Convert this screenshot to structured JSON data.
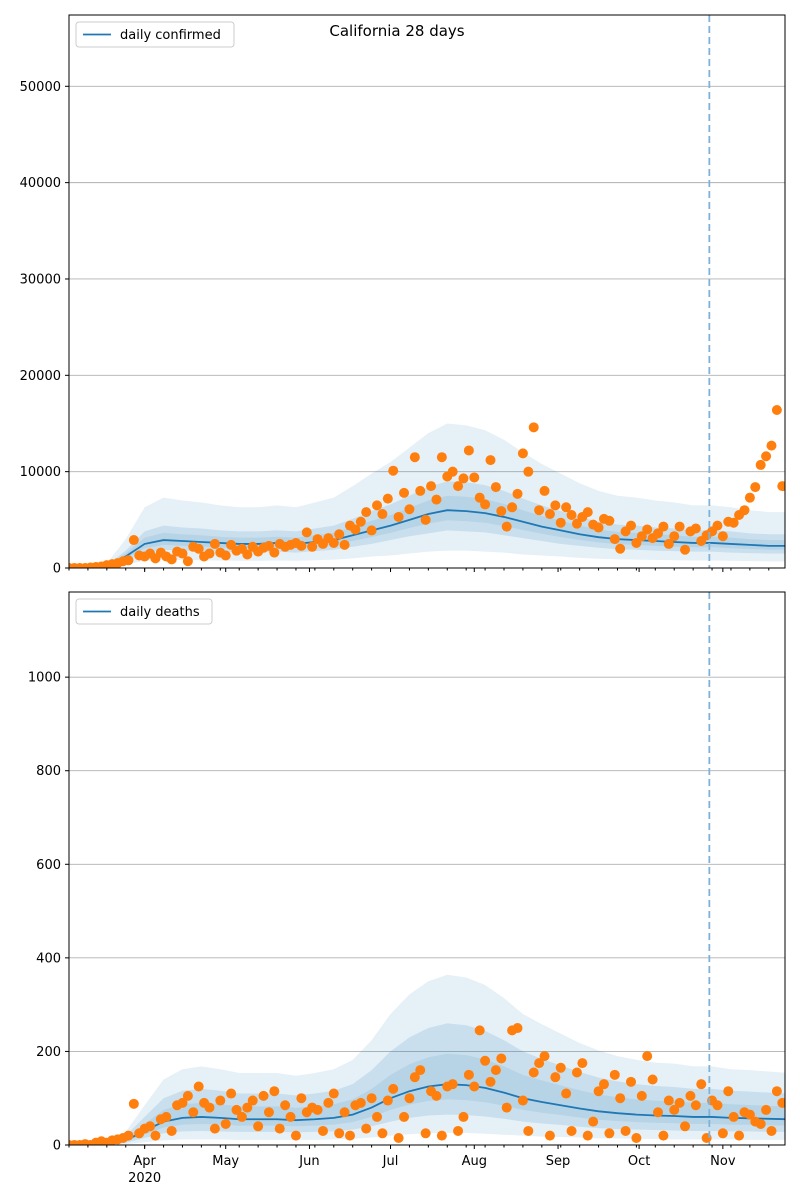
{
  "title": "California 28 days",
  "chart_data": [
    {
      "type": "line",
      "name": "confirmed",
      "legend": "daily confirmed",
      "legend_placement": "top-left",
      "start_date": "2020-03-04",
      "ylim": [
        0,
        57400
      ],
      "yticks": [
        0,
        10000,
        20000,
        30000,
        40000,
        50000
      ],
      "grid": "horizontal",
      "forecast_start_day": 237,
      "model_step_days": 7,
      "median": [
        0,
        0,
        200,
        1200,
        2500,
        2900,
        2800,
        2700,
        2600,
        2500,
        2500,
        2600,
        2500,
        2700,
        2900,
        3400,
        3900,
        4400,
        5000,
        5600,
        6000,
        5900,
        5700,
        5300,
        4800,
        4300,
        3900,
        3500,
        3200,
        3000,
        2900,
        2800,
        2700,
        2600,
        2600,
        2500,
        2400,
        2300,
        2300
      ],
      "outer_upper": [
        0,
        0,
        500,
        3000,
        6300,
        7300,
        7000,
        6800,
        6500,
        6300,
        6300,
        6500,
        6300,
        6800,
        7300,
        8500,
        9800,
        11000,
        12500,
        14000,
        15000,
        14800,
        14300,
        13300,
        12000,
        10800,
        9800,
        8800,
        8000,
        7500,
        7300,
        7000,
        6800,
        6500,
        6500,
        6300,
        6000,
        5800,
        5800
      ],
      "inner_upper": [
        0,
        0,
        300,
        1800,
        3800,
        4400,
        4200,
        4100,
        3900,
        3800,
        3800,
        3900,
        3800,
        4100,
        4400,
        5100,
        5900,
        6600,
        7500,
        8400,
        9000,
        8900,
        8600,
        8000,
        7200,
        6500,
        5900,
        5300,
        4800,
        4500,
        4400,
        4200,
        4100,
        3900,
        3900,
        3800,
        3600,
        3500,
        3500
      ],
      "inner_lower": [
        0,
        0,
        130,
        780,
        1600,
        1900,
        1800,
        1750,
        1700,
        1600,
        1600,
        1700,
        1600,
        1750,
        1900,
        2200,
        2500,
        2900,
        3300,
        3600,
        3900,
        3800,
        3700,
        3400,
        3100,
        2800,
        2500,
        2300,
        2100,
        1950,
        1900,
        1800,
        1750,
        1700,
        1700,
        1600,
        1550,
        1500,
        1500
      ],
      "outer_lower": [
        0,
        0,
        60,
        360,
        750,
        870,
        840,
        810,
        780,
        750,
        750,
        780,
        750,
        810,
        870,
        1000,
        1200,
        1300,
        1500,
        1700,
        1800,
        1800,
        1700,
        1600,
        1400,
        1300,
        1200,
        1050,
        960,
        900,
        870,
        840,
        810,
        780,
        780,
        750,
        720,
        690,
        690
      ],
      "observed_step_days": 2,
      "observed": [
        0,
        0,
        0,
        0,
        50,
        100,
        150,
        300,
        400,
        500,
        700,
        800,
        2900,
        1300,
        1200,
        1500,
        1000,
        1600,
        1200,
        900,
        1700,
        1500,
        700,
        2200,
        2000,
        1200,
        1500,
        2500,
        1600,
        1300,
        2400,
        1800,
        2000,
        1400,
        2200,
        1700,
        2100,
        2300,
        1600,
        2500,
        2200,
        2400,
        2600,
        2300,
        3700,
        2200,
        3000,
        2500,
        3100,
        2600,
        3500,
        2400,
        4400,
        4000,
        4800,
        5800,
        3900,
        6500,
        5600,
        7200,
        10100,
        5300,
        7800,
        6100,
        11500,
        8000,
        5000,
        8500,
        7100,
        11500,
        9500,
        10000,
        8500,
        9300,
        12200,
        9400,
        7300,
        6600,
        11200,
        8400,
        5900,
        4300,
        6300,
        7700,
        11900,
        10000,
        14600,
        6000,
        8000,
        5600,
        6500,
        4700,
        6300,
        5500,
        4600,
        5300,
        5800,
        4500,
        4200,
        5100,
        4900,
        3000,
        2000,
        3800,
        4400,
        2600,
        3300,
        4000,
        3100,
        3600,
        4300,
        2500,
        3300,
        4300,
        1900,
        3800,
        4100,
        2800,
        3400,
        3800,
        4400,
        3300,
        4800,
        4700,
        5500,
        6000,
        7300,
        8400,
        10700,
        11600,
        12700,
        16400,
        8500
      ]
    },
    {
      "type": "line",
      "name": "deaths",
      "legend": "daily deaths",
      "legend_placement": "top-left",
      "start_date": "2020-03-04",
      "ylim": [
        0,
        1182
      ],
      "yticks": [
        0,
        200,
        400,
        600,
        800,
        1000
      ],
      "grid": "horizontal",
      "forecast_start_day": 237,
      "model_step_days": 7,
      "median": [
        0,
        0,
        2,
        10,
        30,
        50,
        58,
        60,
        58,
        55,
        55,
        55,
        53,
        55,
        58,
        65,
        80,
        100,
        115,
        125,
        130,
        128,
        122,
        112,
        100,
        92,
        85,
        78,
        72,
        68,
        65,
        63,
        62,
        60,
        60,
        58,
        57,
        56,
        55
      ],
      "outer_upper": [
        0,
        0,
        6,
        28,
        85,
        140,
        162,
        168,
        162,
        154,
        154,
        154,
        148,
        154,
        162,
        182,
        224,
        280,
        322,
        350,
        364,
        358,
        342,
        314,
        280,
        258,
        238,
        218,
        202,
        190,
        182,
        176,
        174,
        168,
        168,
        162,
        160,
        157,
        154
      ],
      "inner_upper": [
        0,
        0,
        4,
        20,
        60,
        100,
        116,
        120,
        116,
        110,
        110,
        110,
        106,
        110,
        116,
        130,
        160,
        200,
        230,
        250,
        260,
        256,
        244,
        224,
        200,
        184,
        170,
        156,
        144,
        136,
        130,
        126,
        124,
        120,
        120,
        116,
        114,
        112,
        110
      ],
      "inner_lower": [
        0,
        0,
        1,
        5,
        15,
        25,
        29,
        30,
        29,
        28,
        28,
        28,
        27,
        28,
        29,
        33,
        40,
        50,
        58,
        63,
        65,
        64,
        61,
        56,
        50,
        46,
        43,
        39,
        36,
        34,
        33,
        32,
        31,
        30,
        30,
        29,
        29,
        28,
        28
      ],
      "outer_lower": [
        0,
        0,
        0,
        2,
        6,
        10,
        12,
        12,
        12,
        11,
        11,
        11,
        11,
        11,
        12,
        13,
        16,
        20,
        23,
        25,
        26,
        26,
        24,
        22,
        20,
        18,
        17,
        16,
        14,
        14,
        13,
        13,
        12,
        12,
        12,
        12,
        11,
        11,
        11
      ],
      "observed_step_days": 2,
      "observed": [
        0,
        0,
        0,
        2,
        0,
        5,
        8,
        5,
        10,
        12,
        15,
        20,
        88,
        25,
        35,
        40,
        20,
        55,
        60,
        30,
        85,
        90,
        105,
        70,
        125,
        90,
        80,
        35,
        95,
        45,
        110,
        75,
        60,
        80,
        95,
        40,
        105,
        70,
        115,
        35,
        85,
        60,
        20,
        100,
        70,
        80,
        75,
        30,
        90,
        110,
        25,
        70,
        20,
        85,
        90,
        35,
        100,
        60,
        25,
        95,
        120,
        15,
        60,
        100,
        145,
        160,
        25,
        115,
        105,
        20,
        125,
        130,
        30,
        60,
        150,
        125,
        245,
        180,
        135,
        160,
        185,
        80,
        245,
        250,
        95,
        30,
        155,
        175,
        190,
        20,
        145,
        165,
        110,
        30,
        155,
        175,
        20,
        50,
        115,
        130,
        25,
        150,
        100,
        30,
        135,
        15,
        105,
        190,
        140,
        70,
        20,
        95,
        75,
        90,
        40,
        105,
        85,
        130,
        15,
        95,
        85,
        25,
        115,
        60,
        20,
        70,
        65,
        50,
        45,
        75,
        30,
        115,
        90
      ]
    }
  ],
  "x_axis": {
    "total_days": 265,
    "months": [
      {
        "label": "Apr",
        "day": 28
      },
      {
        "label": "May",
        "day": 58
      },
      {
        "label": "Jun",
        "day": 89
      },
      {
        "label": "Jul",
        "day": 119
      },
      {
        "label": "Aug",
        "day": 150
      },
      {
        "label": "Sep",
        "day": 181
      },
      {
        "label": "Oct",
        "day": 211
      },
      {
        "label": "Nov",
        "day": 242
      }
    ],
    "year_label": "2020",
    "minor_step_days": 7
  },
  "colors": {
    "model": "#1f77b4",
    "observed": "#ff7f0e",
    "grid": "#b0b0b0",
    "forecast_line": "#7fb2d9"
  }
}
